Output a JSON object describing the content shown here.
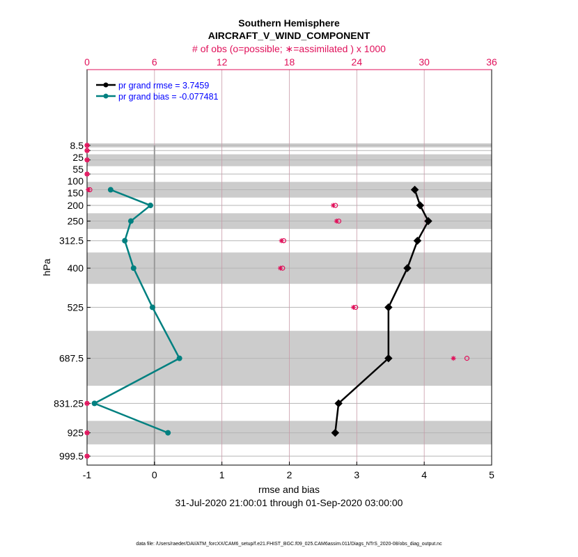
{
  "chart_data": {
    "type": "line",
    "title": "Southern Hemisphere",
    "subtitle": "AIRCRAFT_V_WIND_COMPONENT",
    "top_axis_label": "# of obs (o=possible; ∗=assimilated ) x 1000",
    "xlabel": "rmse and bias",
    "ylabel": "hPa",
    "date_range": "31-Jul-2020 21:00:01 through 01-Sep-2020 03:00:00",
    "footer": "data file: /Users/raeder/DAI/ATM_forcXX/CAM6_setup/f.e21.FHIST_BGC.f09_025.CAM6assim.011/Diags_NTrS_2020-08/obs_diag_output.nc",
    "xlim": [
      -1,
      5
    ],
    "xticks": [
      "-1",
      "0",
      "1",
      "2",
      "3",
      "4",
      "5"
    ],
    "top_xlim": [
      0,
      36
    ],
    "top_xticks": [
      "0",
      "6",
      "12",
      "18",
      "24",
      "30",
      "36"
    ],
    "ylim": [
      1028,
      -233
    ],
    "y_reversed": true,
    "levels": [
      8.5,
      25,
      55,
      100,
      150,
      200,
      250,
      312.5,
      400,
      525,
      687.5,
      831.25,
      925,
      999.5
    ],
    "level_labels": [
      "8.5",
      "25",
      "55",
      "100",
      "150",
      "200",
      "250",
      "312.5",
      "400",
      "525",
      "687.5",
      "831.25",
      "925",
      "999.5"
    ],
    "bands": [
      [
        2,
        15
      ],
      [
        37,
        75
      ],
      [
        125,
        175
      ],
      [
        225,
        275
      ],
      [
        350,
        450
      ],
      [
        600,
        775
      ],
      [
        887,
        962
      ]
    ],
    "legend_position": "top-left",
    "series": [
      {
        "name": "pr grand rmse = 3.7459",
        "color": "#000000",
        "levels": [
          150,
          200,
          250,
          312.5,
          400,
          525,
          687.5,
          831.25,
          925
        ],
        "values": [
          3.86,
          3.94,
          4.06,
          3.9,
          3.75,
          3.47,
          3.47,
          2.73,
          2.68
        ]
      },
      {
        "name": "pr grand bias = -0.077481",
        "color": "#008080",
        "levels": [
          150,
          200,
          250,
          312.5,
          400,
          525,
          687.5,
          831.25,
          925
        ],
        "values": [
          -0.65,
          -0.06,
          -0.35,
          -0.44,
          -0.31,
          -0.03,
          0.37,
          -0.89,
          0.2
        ]
      }
    ],
    "obs_possible": {
      "levels": [
        8.5,
        25,
        55,
        100,
        150,
        200,
        250,
        312.5,
        400,
        525,
        687.5,
        831.25,
        925,
        999.5
      ],
      "values": [
        0,
        0,
        0,
        0,
        0.25,
        22.1,
        22.4,
        17.5,
        17.4,
        23.9,
        33.8,
        0,
        0,
        0
      ]
    },
    "obs_assimilated": {
      "levels": [
        8.5,
        25,
        55,
        100,
        150,
        200,
        250,
        312.5,
        400,
        525,
        687.5,
        831.25,
        925,
        999.5
      ],
      "values": [
        0,
        0,
        0,
        0,
        0.1,
        21.9,
        22.2,
        17.3,
        17.2,
        23.7,
        32.6,
        0,
        0,
        0
      ]
    },
    "obs_color": "#e0105a",
    "legend_text_color": "#0000ff"
  }
}
